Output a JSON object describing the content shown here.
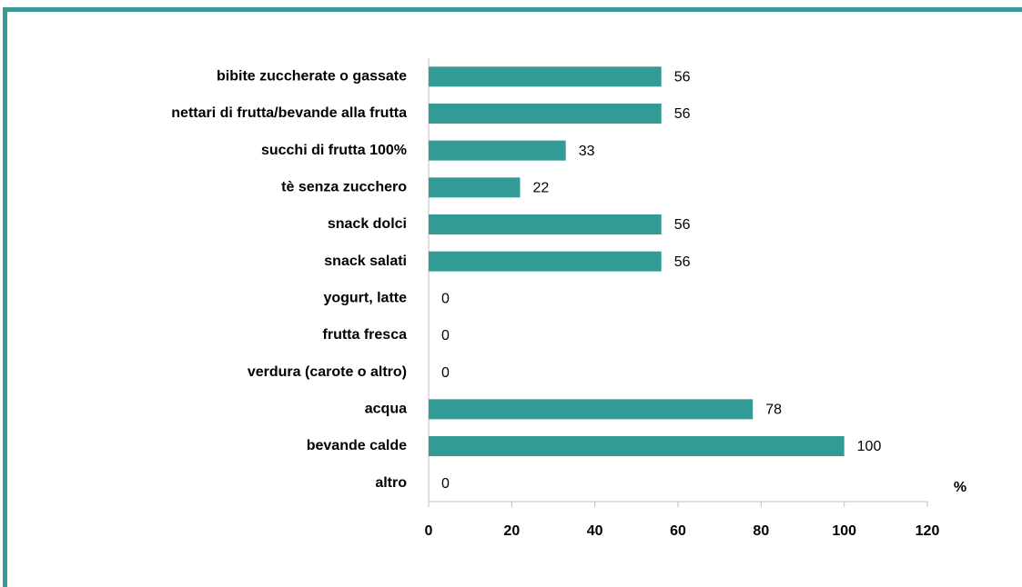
{
  "chart_data": {
    "type": "bar",
    "orientation": "horizontal",
    "categories": [
      "bibite zuccherate o gassate",
      "nettari di frutta/bevande alla frutta",
      "succhi di frutta 100%",
      "tè senza zucchero",
      "snack dolci",
      "snack salati",
      "yogurt, latte",
      "frutta fresca",
      "verdura (carote o altro)",
      "acqua",
      "bevande calde",
      "altro"
    ],
    "values": [
      56,
      56,
      33,
      22,
      56,
      56,
      0,
      0,
      0,
      78,
      100,
      0
    ],
    "color": "#339b96",
    "x_label": "%",
    "xlim": [
      0,
      120
    ],
    "xticks": [
      0,
      20,
      40,
      60,
      80,
      100,
      120
    ]
  }
}
